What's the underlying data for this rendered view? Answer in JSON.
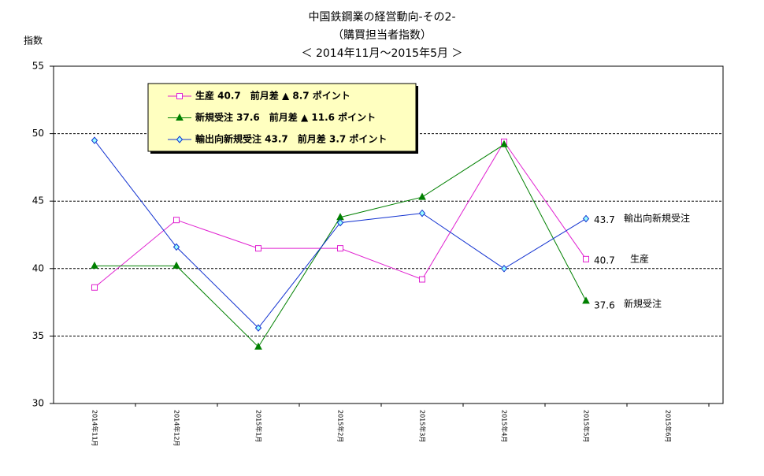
{
  "chart_data": {
    "type": "line",
    "title": [
      "中国鉄鋼業の経営動向-その2-",
      "（購買担当者指数）",
      "＜ 2014年11月～2015年5月 ＞"
    ],
    "ylabel": "指数",
    "categories": [
      "2014年11月",
      "2014年12月",
      "2015年1月",
      "2015年2月",
      "2015年3月",
      "2015年4月",
      "2015年5月",
      "2015年6月"
    ],
    "series": [
      {
        "name": "生産",
        "color": "#e020d0",
        "marker": "square",
        "values": [
          38.6,
          43.6,
          41.5,
          41.5,
          39.2,
          49.4,
          40.7,
          null
        ]
      },
      {
        "name": "新規受注",
        "color": "#008000",
        "marker": "triangle",
        "values": [
          40.2,
          40.2,
          34.2,
          43.8,
          45.3,
          49.2,
          37.6,
          null
        ]
      },
      {
        "name": "輸出向新規受注",
        "color": "#1030d0",
        "marker": "diamond",
        "values": [
          49.5,
          41.6,
          35.6,
          43.4,
          44.1,
          40.0,
          43.7,
          null
        ]
      }
    ],
    "legend_texts": [
      "生産 40.7　前月差 ▲ 8.7 ポイント",
      "新規受注 37.6　前月差 ▲ 11.6 ポイント",
      "輸出向新規受注 43.7　前月差 3.7 ポイント"
    ],
    "ylim": [
      30,
      55
    ],
    "yticks": [
      30,
      35,
      40,
      45,
      50,
      55
    ],
    "grid": true
  }
}
